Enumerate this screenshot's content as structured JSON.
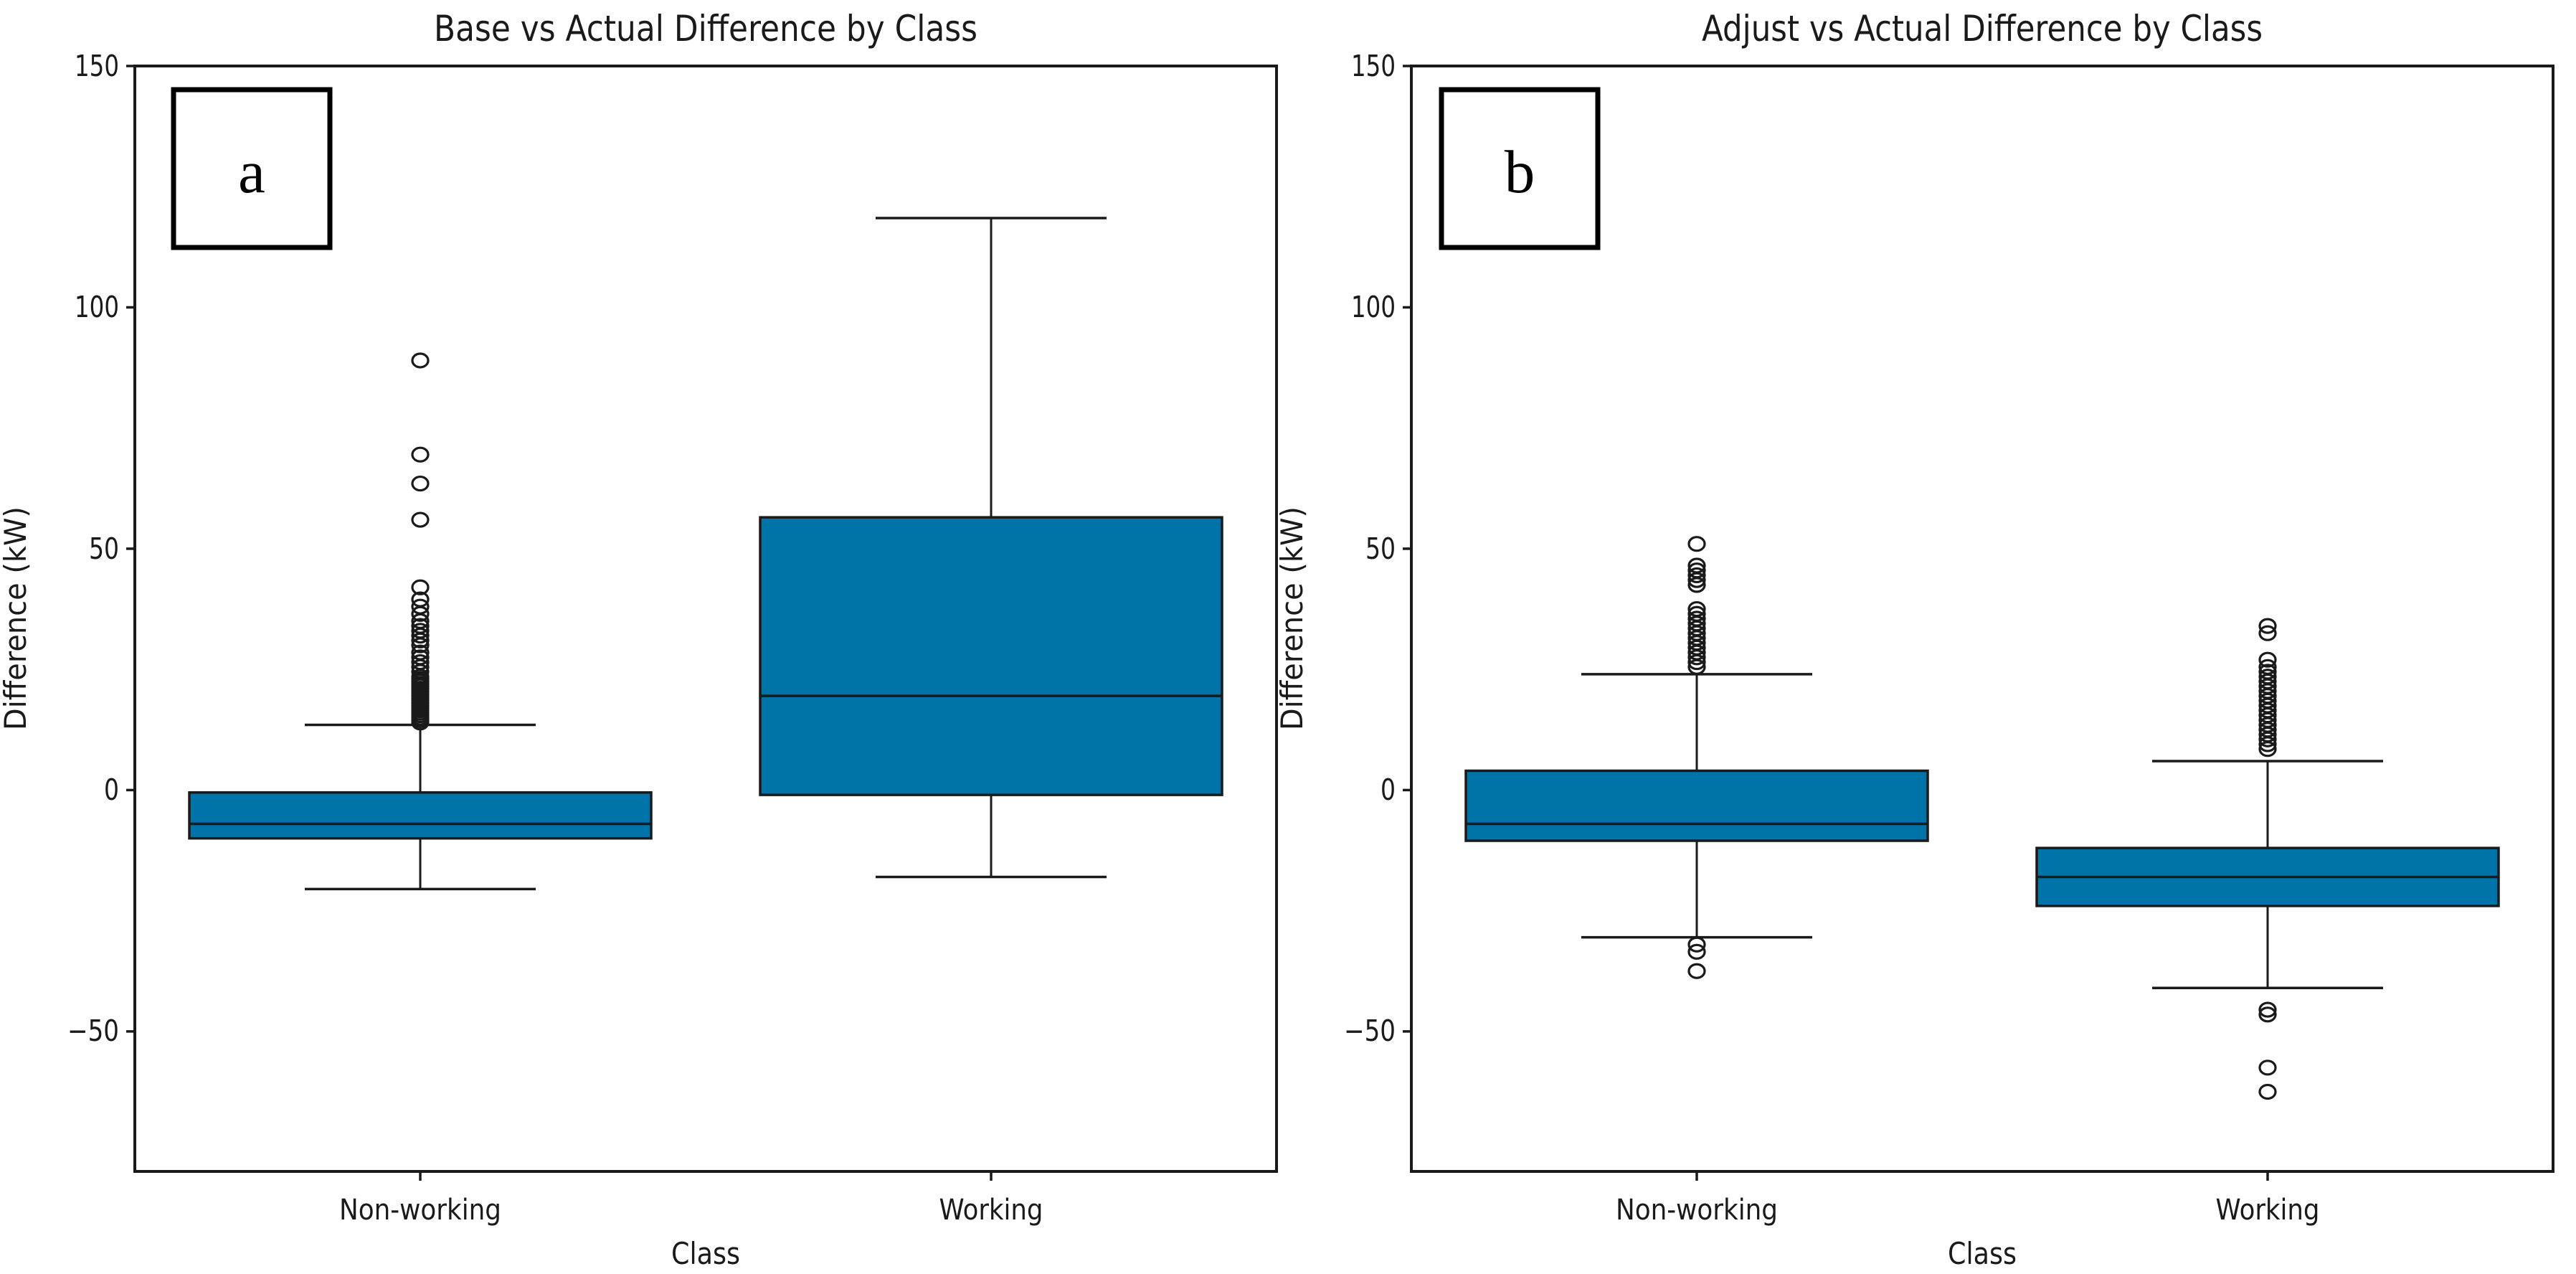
{
  "style": {
    "box_fill": "#0073a8",
    "line_color": "#1a1a1a",
    "background": "#ffffff",
    "outlier_marker": "open-circle"
  },
  "chart_data": [
    {
      "type": "box",
      "title": "Base vs Actual Difference by Class",
      "panel_label": "a",
      "xlabel": "Class",
      "ylabel": "Difference (kW)",
      "ylim": [
        -79,
        150
      ],
      "grid": false,
      "yticks": [
        {
          "value": 150,
          "label": "150"
        },
        {
          "value": 100,
          "label": "100"
        },
        {
          "value": 50,
          "label": "50"
        },
        {
          "value": 0,
          "label": "0"
        },
        {
          "value": -50,
          "label": "−50"
        }
      ],
      "categories": [
        "Non-working",
        "Working"
      ],
      "boxes": [
        {
          "category": "Non-working",
          "whisker_low": -20.5,
          "q1": -10,
          "median": -7,
          "q3": -0.5,
          "whisker_high": 13.5,
          "outliers": [
            89,
            69.5,
            63.5,
            56,
            42,
            39.5,
            38,
            36.5,
            35,
            34,
            33,
            32,
            31,
            30,
            28.5,
            27.5,
            26.5,
            25.5,
            24.5,
            23.5,
            23,
            22.5,
            22,
            21.5,
            21,
            20.5,
            20,
            19.5,
            19,
            18.5,
            18,
            17.5,
            17,
            16.5,
            16,
            15.5,
            15,
            14.5,
            14
          ]
        },
        {
          "category": "Working",
          "whisker_low": -18,
          "q1": -1,
          "median": 19.5,
          "q3": 56.5,
          "whisker_high": 118.5,
          "outliers": []
        }
      ]
    },
    {
      "type": "box",
      "title": "Adjust vs Actual Difference by Class",
      "panel_label": "b",
      "xlabel": "Class",
      "ylabel": "Difference (kW)",
      "ylim": [
        -79,
        150
      ],
      "grid": false,
      "yticks": [
        {
          "value": 150,
          "label": "150"
        },
        {
          "value": 100,
          "label": "100"
        },
        {
          "value": 50,
          "label": "50"
        },
        {
          "value": 0,
          "label": "0"
        },
        {
          "value": -50,
          "label": "−50"
        }
      ],
      "categories": [
        "Non-working",
        "Working"
      ],
      "boxes": [
        {
          "category": "Non-working",
          "whisker_low": -30.5,
          "q1": -10.5,
          "median": -7,
          "q3": 4,
          "whisker_high": 24,
          "outliers": [
            51,
            46.5,
            45.5,
            44.5,
            43.5,
            42.5,
            37.5,
            36.5,
            35.5,
            34.5,
            33.5,
            32.5,
            31.5,
            30.5,
            29.5,
            28.5,
            27.5,
            26.5,
            25.5,
            -32,
            -33.5,
            -37.5
          ]
        },
        {
          "category": "Working",
          "whisker_low": -41,
          "q1": -24,
          "median": -18,
          "q3": -12,
          "whisker_high": 6,
          "outliers": [
            34,
            32.5,
            27,
            25.5,
            24.5,
            23.5,
            22.5,
            21.5,
            20.5,
            19.5,
            18.5,
            17.5,
            16.5,
            15.5,
            14.5,
            13.5,
            12.5,
            11.5,
            10.5,
            9.5,
            8.5,
            -45.5,
            -46.5,
            -57.5,
            -62.5
          ]
        }
      ]
    }
  ]
}
